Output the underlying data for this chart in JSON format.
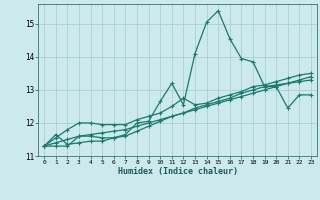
{
  "xlabel": "Humidex (Indice chaleur)",
  "background_color": "#cce9ec",
  "grid_color": "#aacfd4",
  "line_color": "#1a7a6e",
  "ylim": [
    11,
    15.6
  ],
  "xlim": [
    -0.5,
    23.5
  ],
  "yticks": [
    11,
    12,
    13,
    14,
    15
  ],
  "xticks": [
    0,
    1,
    2,
    3,
    4,
    5,
    6,
    7,
    8,
    9,
    10,
    11,
    12,
    13,
    14,
    15,
    16,
    17,
    18,
    19,
    20,
    21,
    22,
    23
  ],
  "series": [
    [
      11.3,
      11.65,
      11.35,
      11.4,
      11.45,
      11.45,
      11.55,
      11.65,
      12.0,
      12.05,
      12.65,
      13.2,
      12.55,
      14.1,
      15.05,
      15.4,
      14.55,
      13.95,
      13.85,
      13.1,
      13.1,
      12.45,
      12.85,
      12.85
    ],
    [
      11.3,
      11.3,
      11.3,
      11.6,
      11.6,
      11.55,
      11.55,
      11.6,
      11.75,
      11.9,
      12.05,
      12.2,
      12.3,
      12.45,
      12.55,
      12.65,
      12.75,
      12.9,
      13.0,
      13.1,
      13.15,
      13.2,
      13.25,
      13.3
    ],
    [
      11.3,
      11.4,
      11.5,
      11.6,
      11.65,
      11.7,
      11.75,
      11.8,
      11.9,
      12.0,
      12.1,
      12.2,
      12.3,
      12.4,
      12.5,
      12.6,
      12.7,
      12.8,
      12.9,
      13.0,
      13.1,
      13.2,
      13.3,
      13.4
    ],
    [
      11.3,
      11.55,
      11.8,
      12.0,
      12.0,
      11.95,
      11.95,
      11.95,
      12.1,
      12.2,
      12.3,
      12.5,
      12.75,
      12.55,
      12.6,
      12.75,
      12.85,
      12.95,
      13.1,
      13.15,
      13.25,
      13.35,
      13.45,
      13.5
    ]
  ]
}
